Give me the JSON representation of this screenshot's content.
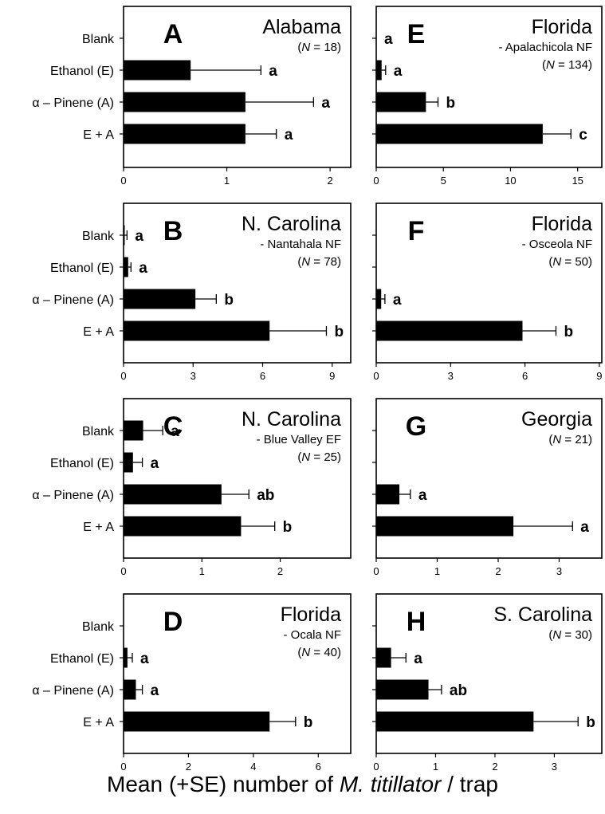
{
  "figure": {
    "xlabel_before": "Mean (+SE) number of ",
    "xlabel_italic": "M. titillator",
    "xlabel_after": " / trap"
  },
  "chart_data": [
    {
      "type": "bar",
      "panel": "A",
      "region": "Alabama",
      "site": "",
      "n_label": "(N = 18)",
      "categories": [
        "Blank",
        "Ethanol (E)",
        "α – Pinene (A)",
        "E + A"
      ],
      "values": [
        0,
        0.65,
        1.18,
        1.18
      ],
      "errors": [
        0,
        0.68,
        0.66,
        0.3
      ],
      "letters": [
        "",
        "a",
        "a",
        "a"
      ],
      "xlim": [
        0,
        2.2
      ],
      "xticks": [
        0,
        1,
        2
      ],
      "show_labels": true
    },
    {
      "type": "bar",
      "panel": "E",
      "region": "Florida",
      "site": "- Apalachicola NF",
      "n_label": "(N = 134)",
      "categories": [
        "Blank",
        "Ethanol (E)",
        "α – Pinene (A)",
        "E + A"
      ],
      "values": [
        0,
        0.4,
        3.7,
        12.4
      ],
      "errors": [
        0,
        0.3,
        0.9,
        2.1
      ],
      "letters": [
        "a",
        "a",
        "b",
        "c"
      ],
      "xlim": [
        0,
        16.8
      ],
      "xticks": [
        0,
        5,
        10,
        15
      ],
      "show_labels": false
    },
    {
      "type": "bar",
      "panel": "B",
      "region": "N. Carolina",
      "site": "- Nantahala NF",
      "n_label": "(N = 78)",
      "categories": [
        "Blank",
        "Ethanol (E)",
        "α – Pinene (A)",
        "E + A"
      ],
      "values": [
        0.05,
        0.2,
        3.1,
        6.3
      ],
      "errors": [
        0.1,
        0.12,
        0.9,
        2.45
      ],
      "letters": [
        "a",
        "a",
        "b",
        "b"
      ],
      "xlim": [
        0,
        9.8
      ],
      "xticks": [
        0,
        3,
        6,
        9
      ],
      "show_labels": true
    },
    {
      "type": "bar",
      "panel": "F",
      "region": "Florida",
      "site": "- Osceola NF",
      "n_label": "(N = 50)",
      "categories": [
        "Blank",
        "Ethanol (E)",
        "α – Pinene (A)",
        "E + A"
      ],
      "values": [
        0,
        0,
        0.2,
        5.9
      ],
      "errors": [
        0,
        0,
        0.15,
        1.35
      ],
      "letters": [
        "",
        "",
        "a",
        "b"
      ],
      "xlim": [
        0,
        9.1
      ],
      "xticks": [
        0,
        3,
        6,
        9
      ],
      "show_labels": false
    },
    {
      "type": "bar",
      "panel": "C",
      "region": "N. Carolina",
      "site": "- Blue Valley EF",
      "n_label": "(N = 25)",
      "categories": [
        "Blank",
        "Ethanol (E)",
        "α – Pinene (A)",
        "E + A"
      ],
      "values": [
        0.25,
        0.12,
        1.25,
        1.5
      ],
      "errors": [
        0.25,
        0.12,
        0.35,
        0.43
      ],
      "letters": [
        "a",
        "a",
        "ab",
        "b"
      ],
      "xlim": [
        0,
        2.9
      ],
      "xticks": [
        0,
        1,
        2
      ],
      "show_labels": true
    },
    {
      "type": "bar",
      "panel": "G",
      "region": "Georgia",
      "site": "",
      "n_label": "(N = 21)",
      "categories": [
        "Blank",
        "Ethanol (E)",
        "α – Pinene (A)",
        "E + A"
      ],
      "values": [
        0,
        0,
        0.38,
        2.25
      ],
      "errors": [
        0,
        0,
        0.18,
        0.97
      ],
      "letters": [
        "",
        "",
        "a",
        "a"
      ],
      "xlim": [
        0,
        3.7
      ],
      "xticks": [
        0,
        1,
        2,
        3
      ],
      "show_labels": false
    },
    {
      "type": "bar",
      "panel": "D",
      "region": "Florida",
      "site": "- Ocala NF",
      "n_label": "(N = 40)",
      "categories": [
        "Blank",
        "Ethanol (E)",
        "α – Pinene (A)",
        "E + A"
      ],
      "values": [
        0,
        0.12,
        0.38,
        4.5
      ],
      "errors": [
        0,
        0.15,
        0.2,
        0.8
      ],
      "letters": [
        "",
        "a",
        "a",
        "b"
      ],
      "xlim": [
        0,
        7
      ],
      "xticks": [
        0,
        2,
        4,
        6
      ],
      "show_labels": true
    },
    {
      "type": "bar",
      "panel": "H",
      "region": "S. Carolina",
      "site": "",
      "n_label": "(N = 30)",
      "categories": [
        "Blank",
        "Ethanol (E)",
        "α – Pinene (A)",
        "E + A"
      ],
      "values": [
        0,
        0.25,
        0.88,
        2.65
      ],
      "errors": [
        0,
        0.25,
        0.22,
        0.75
      ],
      "letters": [
        "",
        "a",
        "ab",
        "b"
      ],
      "xlim": [
        0,
        3.8
      ],
      "xticks": [
        0,
        1,
        2,
        3
      ],
      "show_labels": false
    }
  ]
}
